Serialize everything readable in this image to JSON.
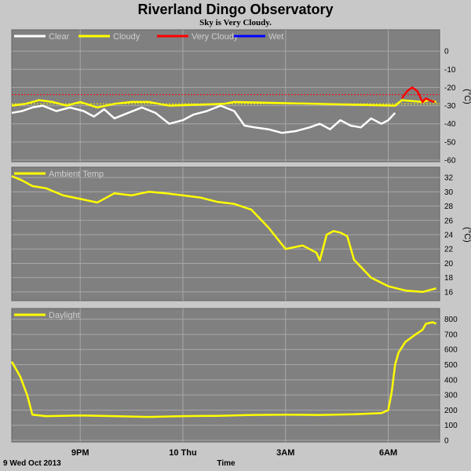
{
  "title": "Riverland Dingo Observatory",
  "subtitle": "Sky is Very Cloudy.",
  "footer": {
    "date": "9 Wed Oct 2013",
    "xlabel": "Time"
  },
  "x_ticks": [
    {
      "label": "9PM",
      "t": 2.0
    },
    {
      "label": "10 Thu",
      "t": 5.0
    },
    {
      "label": "3AM",
      "t": 8.0
    },
    {
      "label": "6AM",
      "t": 11.0
    }
  ],
  "x_range": [
    0,
    12.5
  ],
  "colors": {
    "clear": "#ffffff",
    "cloudy": "#ffff00",
    "very_cloudy": "#ff0000",
    "wet": "#0000ff",
    "plot_bg": "#808080",
    "grid": "#a8a8a8"
  },
  "chart_data": [
    {
      "type": "line",
      "ylim": [
        -60,
        10
      ],
      "yticks": [
        0,
        -10,
        -20,
        -30,
        -40,
        -50,
        -60
      ],
      "unit": "(°C)",
      "legend": [
        "Clear",
        "Cloudy",
        "Very Cloudy",
        "Wet"
      ],
      "thresholds": [
        {
          "value": -24,
          "color": "#ff0000"
        },
        {
          "value": -29,
          "color": "#ffff00"
        }
      ],
      "series": [
        {
          "name": "Clear",
          "color": "#ffffff",
          "x": [
            0,
            0.3,
            0.6,
            0.9,
            1.3,
            1.7,
            2.1,
            2.4,
            2.7,
            3.0,
            3.4,
            3.8,
            4.2,
            4.6,
            5.0,
            5.3,
            5.7,
            6.1,
            6.5,
            6.8,
            7.1,
            7.5,
            7.9,
            8.3,
            8.7,
            9.0,
            9.3,
            9.6,
            9.9,
            10.2,
            10.5,
            10.8,
            11.0,
            11.2
          ],
          "values": [
            -34,
            -33,
            -31,
            -30,
            -33,
            -31,
            -33,
            -36,
            -32,
            -37,
            -34,
            -31,
            -34,
            -40,
            -38,
            -35,
            -33,
            -30,
            -33,
            -41,
            -42,
            -43,
            -45,
            -44,
            -42,
            -40,
            -43,
            -38,
            -41,
            -42,
            -37,
            -40,
            -38,
            -34
          ]
        },
        {
          "name": "Cloudy",
          "color": "#ffff00",
          "x": [
            0,
            0.4,
            0.8,
            1.2,
            1.6,
            2.0,
            2.5,
            3.0,
            3.5,
            4.0,
            4.3,
            4.6,
            6.2,
            6.5,
            11.2,
            11.4,
            12.0,
            12.2,
            12.4
          ],
          "values": [
            -30,
            -29,
            -27,
            -28,
            -30,
            -28,
            -31,
            -29,
            -28,
            -28,
            -29,
            -30,
            -29,
            -28,
            -30,
            -27,
            -28,
            -27,
            -28
          ]
        },
        {
          "name": "Very Cloudy",
          "color": "#ff0000",
          "x": [
            11.4,
            11.55,
            11.7,
            11.85,
            12.0,
            12.1,
            12.2,
            12.35
          ],
          "values": [
            -26,
            -22,
            -20,
            -22,
            -28,
            -26,
            -27,
            -28
          ]
        },
        {
          "name": "Wet",
          "color": "#0000ff",
          "x": [],
          "values": []
        }
      ]
    },
    {
      "type": "line",
      "ylim": [
        15,
        33
      ],
      "yticks": [
        32,
        30,
        28,
        26,
        24,
        22,
        20,
        18,
        16
      ],
      "unit": "(°C)",
      "legend": [
        "Ambient Temp"
      ],
      "series": [
        {
          "name": "Ambient Temp",
          "color": "#ffff00",
          "x": [
            0,
            0.3,
            0.6,
            1.0,
            1.5,
            2.0,
            2.5,
            3.0,
            3.5,
            4.0,
            4.5,
            5.0,
            5.5,
            6.0,
            6.5,
            7.0,
            7.5,
            8.0,
            8.5,
            8.9,
            9.0,
            9.2,
            9.4,
            9.6,
            9.8,
            10.0,
            10.5,
            11.0,
            11.5,
            12.0,
            12.4
          ],
          "values": [
            32.2,
            31.6,
            30.8,
            30.5,
            29.5,
            29.0,
            28.5,
            29.8,
            29.5,
            30.0,
            29.8,
            29.5,
            29.2,
            28.6,
            28.3,
            27.5,
            25.0,
            22.0,
            22.5,
            21.5,
            20.4,
            24.0,
            24.5,
            24.3,
            23.8,
            20.5,
            18.0,
            16.8,
            16.2,
            16.0,
            16.5
          ]
        }
      ]
    },
    {
      "type": "line",
      "ylim": [
        0,
        850
      ],
      "yticks": [
        800,
        700,
        600,
        500,
        400,
        300,
        200,
        100,
        0
      ],
      "unit": "",
      "legend": [
        "Daylight"
      ],
      "series": [
        {
          "name": "Daylight",
          "color": "#ffff00",
          "x": [
            0,
            0.25,
            0.45,
            0.6,
            1.0,
            2.0,
            3.0,
            4.0,
            5.0,
            6.0,
            7.0,
            8.0,
            9.0,
            10.0,
            10.8,
            11.0,
            11.1,
            11.2,
            11.3,
            11.5,
            11.8,
            12.0,
            12.1,
            12.3,
            12.4
          ],
          "values": [
            520,
            420,
            300,
            170,
            160,
            165,
            160,
            155,
            160,
            162,
            168,
            170,
            168,
            172,
            180,
            200,
            320,
            500,
            580,
            650,
            700,
            730,
            770,
            780,
            770
          ]
        }
      ]
    }
  ]
}
